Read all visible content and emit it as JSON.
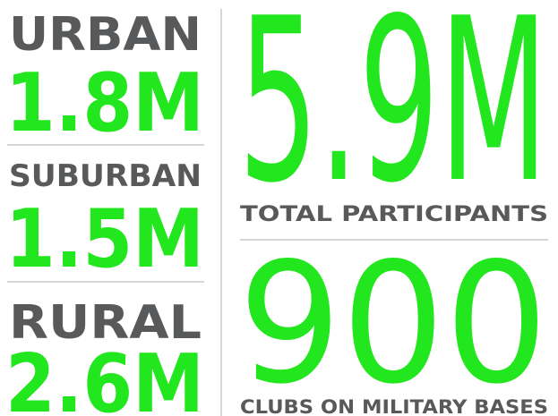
{
  "left_stats": [
    {
      "label": "URBAN",
      "value": "1.8M"
    },
    {
      "label": "SUBURBAN",
      "value": "1.5M"
    },
    {
      "label": "RURAL",
      "value": "2.6M"
    }
  ],
  "right_stats": [
    {
      "value": "5.9M",
      "label": "TOTAL PARTICIPANTS"
    },
    {
      "value": "900",
      "label": "CLUBS ON MILITARY BASES"
    }
  ]
}
